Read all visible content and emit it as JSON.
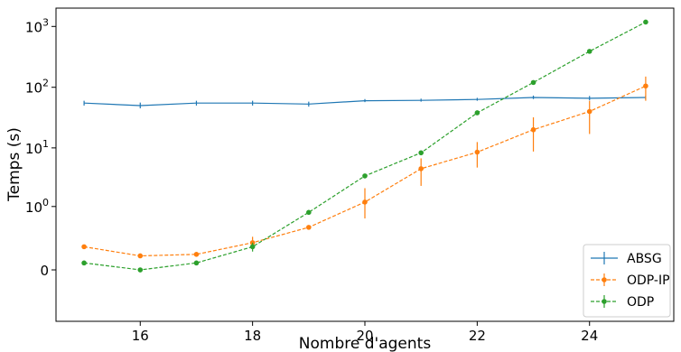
{
  "chart_data": {
    "type": "line",
    "xlabel": "Nombre d'agents",
    "ylabel": "Temps (s)",
    "yscale": "symlog",
    "x": [
      15,
      16,
      17,
      18,
      19,
      20,
      21,
      22,
      23,
      24,
      25
    ],
    "xlim": [
      14.5,
      25.5
    ],
    "xticks": [
      16,
      18,
      20,
      22,
      24
    ],
    "ylim": [
      -0.6,
      2000
    ],
    "yticks": [
      {
        "value": 0,
        "label": "0"
      },
      {
        "value": 1,
        "label": "10^0"
      },
      {
        "value": 10,
        "label": "10^1"
      },
      {
        "value": 100,
        "label": "10^2"
      },
      {
        "value": 1000,
        "label": "10^3"
      }
    ],
    "grid": false,
    "legend_position": "bottom-right",
    "series": [
      {
        "name": "ABSG",
        "color": "#1f77b4",
        "linestyle": "solid",
        "marker": "none",
        "values": [
          55,
          50,
          55,
          55,
          53,
          60,
          61,
          63,
          68,
          66,
          68
        ],
        "err_low": [
          50,
          45,
          50,
          50,
          48,
          57,
          58,
          60,
          64,
          61,
          63
        ],
        "err_high": [
          60,
          56,
          60,
          60,
          58,
          64,
          65,
          67,
          73,
          72,
          73
        ]
      },
      {
        "name": "ODP-IP",
        "color": "#ff7f0e",
        "linestyle": "dashed",
        "marker": "circle",
        "values": [
          0.14,
          0.07,
          0.08,
          0.18,
          0.4,
          1.2,
          4.5,
          8.5,
          20,
          40,
          105
        ],
        "err_low": [
          0.14,
          0.07,
          0.08,
          0.12,
          0.4,
          0.6,
          2.3,
          4.7,
          8.7,
          17,
          60
        ],
        "err_high": [
          0.14,
          0.07,
          0.08,
          0.25,
          0.4,
          2.1,
          6.7,
          12.5,
          32,
          60,
          150
        ]
      },
      {
        "name": "ODP",
        "color": "#2ca02c",
        "linestyle": "dashed",
        "marker": "circle",
        "values": [
          0.03,
          0.0,
          0.03,
          0.14,
          0.78,
          3.4,
          8.3,
          38,
          120,
          390,
          1180
        ],
        "err_low": [
          0.03,
          0.0,
          0.03,
          0.1,
          0.75,
          3.1,
          8.0,
          36,
          115,
          380,
          1150
        ],
        "err_high": [
          0.03,
          0.0,
          0.03,
          0.18,
          0.8,
          3.7,
          8.6,
          40,
          125,
          400,
          1210
        ]
      }
    ]
  }
}
